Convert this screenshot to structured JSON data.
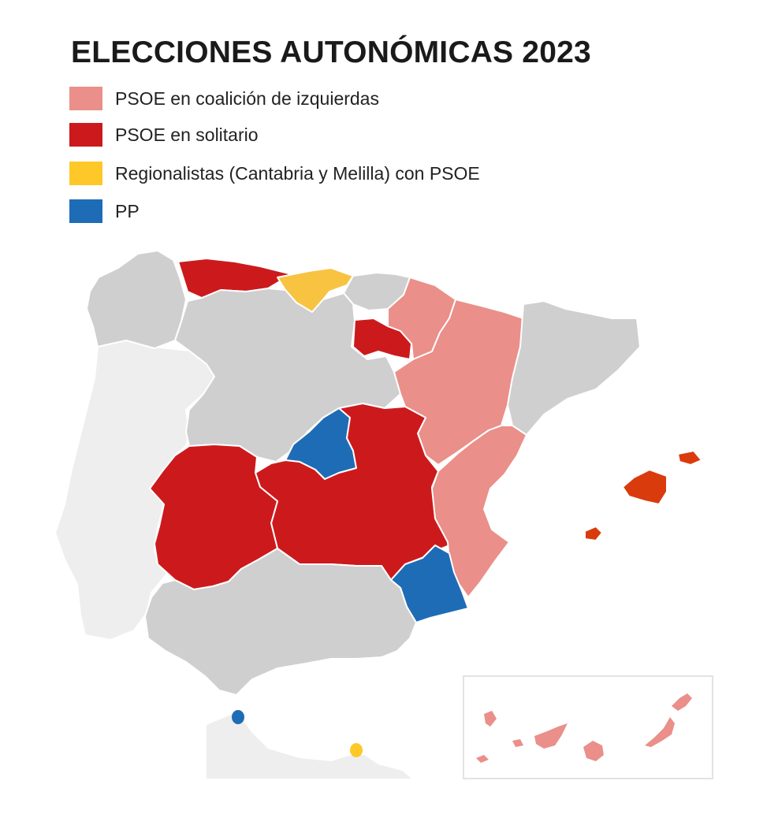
{
  "title": "ELECCIONES AUTONÓMICAS 2023",
  "legend": [
    {
      "label": "PSOE en coalición de izquierdas",
      "color": "#ea8f89"
    },
    {
      "label": "PSOE en solitario",
      "color": "#cc1a1c"
    },
    {
      "label": "Regionalistas (Cantabria y Melilla) con PSOE",
      "color": "#ffc829"
    },
    {
      "label": "PP",
      "color": "#1f6cb6"
    }
  ],
  "colors": {
    "no_election": "#cfcfcf",
    "portugal": "#eeeeee",
    "balearic": "#d93b0c"
  },
  "regions": [
    {
      "name": "Galicia",
      "result": "no_election"
    },
    {
      "name": "Asturias",
      "result": "PSOE en solitario"
    },
    {
      "name": "Cantabria",
      "result": "Regionalistas (Cantabria y Melilla) con PSOE"
    },
    {
      "name": "País Vasco",
      "result": "no_election"
    },
    {
      "name": "Navarra",
      "result": "PSOE en coalición de izquierdas"
    },
    {
      "name": "La Rioja",
      "result": "PSOE en solitario"
    },
    {
      "name": "Aragón",
      "result": "PSOE en coalición de izquierdas"
    },
    {
      "name": "Cataluña",
      "result": "no_election"
    },
    {
      "name": "Castilla y León",
      "result": "no_election"
    },
    {
      "name": "Madrid",
      "result": "PP"
    },
    {
      "name": "Castilla-La Mancha",
      "result": "PSOE en solitario"
    },
    {
      "name": "Extremadura",
      "result": "PSOE en solitario"
    },
    {
      "name": "Comunidad Valenciana",
      "result": "PSOE en coalición de izquierdas"
    },
    {
      "name": "Región de Murcia",
      "result": "PP"
    },
    {
      "name": "Andalucía",
      "result": "no_election"
    },
    {
      "name": "Islas Baleares",
      "result": "balearic"
    },
    {
      "name": "Canarias",
      "result": "PSOE en coalición de izquierdas"
    },
    {
      "name": "Ceuta",
      "result": "PP"
    },
    {
      "name": "Melilla",
      "result": "Regionalistas (Cantabria y Melilla) con PSOE"
    }
  ]
}
